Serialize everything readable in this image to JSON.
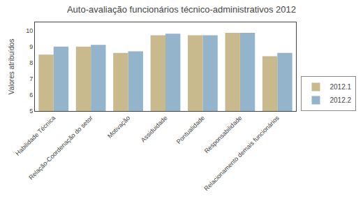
{
  "chart_data": {
    "type": "bar",
    "title": "Auto-avaliação funcionários técnico-administrativos 2012",
    "ylabel": "Valores atribuídos",
    "categories": [
      "Habilidade Técnica",
      "Relação-Coordenação do setor",
      "Motivação",
      "Assiduidade",
      "Pontualidade",
      "Responsabilidade",
      "Relacionamento demais funcionários"
    ],
    "series": [
      {
        "name": "2012.1",
        "color": "#C8BA8C",
        "values": [
          8.5,
          9.0,
          8.6,
          9.7,
          9.7,
          9.85,
          8.4
        ]
      },
      {
        "name": "2012.2",
        "color": "#94B4CC",
        "values": [
          9.0,
          9.1,
          8.7,
          9.8,
          9.7,
          9.85,
          8.6
        ]
      }
    ],
    "ylim": [
      5,
      10.5
    ],
    "yticks": [
      5,
      6,
      7,
      8,
      9,
      10
    ],
    "grid": false,
    "legend": "lower right"
  }
}
